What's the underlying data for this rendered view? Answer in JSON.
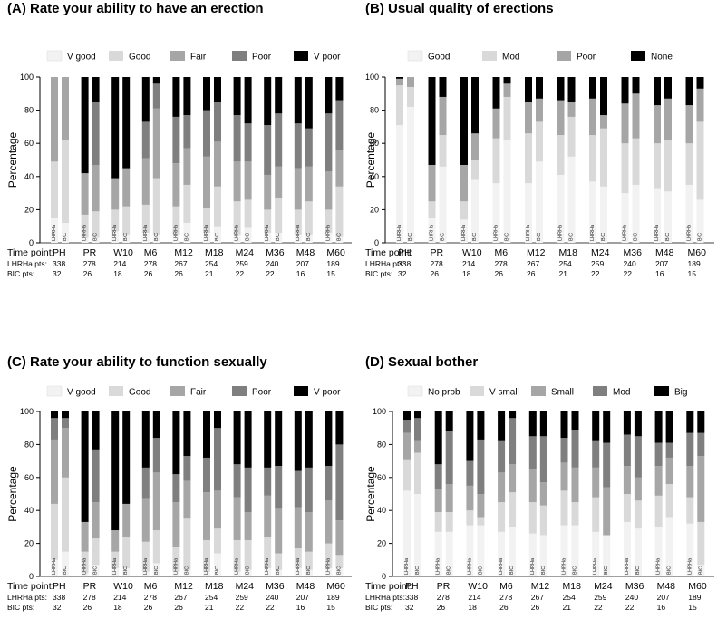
{
  "figure": {
    "time_point_label": "Time point:",
    "lhrha_label": "LHRHa pts:",
    "bic_label": "BIC pts:",
    "group_labels": [
      "LHRHa",
      "BIC"
    ],
    "time_points": [
      "PH",
      "PR",
      "W10",
      "M6",
      "M12",
      "M18",
      "M24",
      "M36",
      "M48",
      "M60"
    ],
    "lhrha_counts": [
      "338",
      "278",
      "214",
      "278",
      "267",
      "254",
      "259",
      "240",
      "207",
      "189"
    ],
    "bic_counts": [
      "32",
      "26",
      "18",
      "26",
      "26",
      "21",
      "22",
      "22",
      "16",
      "15"
    ]
  },
  "chart_data": [
    {
      "type": "bar",
      "stacked": true,
      "title": "(A) Rate your ability to have an erection",
      "ylabel": "Percentage",
      "ylim": [
        0,
        100
      ],
      "yticks": [
        "0",
        "20",
        "40",
        "60",
        "80",
        "100"
      ],
      "categories": [
        "PH-LHRHa",
        "PH-BIC",
        "PR-LHRHa",
        "PR-BIC",
        "W10-LHRHa",
        "W10-BIC",
        "M6-LHRHa",
        "M6-BIC",
        "M12-LHRHa",
        "M12-BIC",
        "M18-LHRHa",
        "M18-BIC",
        "M24-LHRHa",
        "M24-BIC",
        "M36-LHRHa",
        "M36-BIC",
        "M48-LHRHa",
        "M48-BIC",
        "M60-LHRHa",
        "M60-BIC"
      ],
      "series": [
        {
          "name": "V good",
          "color": "#f2f2f2",
          "values": [
            15,
            12,
            3,
            3,
            7,
            5,
            6,
            5,
            5,
            12,
            6,
            10,
            5,
            9,
            6,
            6,
            5,
            5,
            6,
            4
          ]
        },
        {
          "name": "Good",
          "color": "#d9d9d9",
          "values": [
            34,
            50,
            14,
            16,
            13,
            17,
            17,
            34,
            17,
            23,
            15,
            24,
            20,
            17,
            14,
            21,
            15,
            20,
            14,
            30
          ]
        },
        {
          "name": "Fair",
          "color": "#a6a6a6",
          "values": [
            51,
            38,
            25,
            28,
            19,
            23,
            28,
            42,
            26,
            22,
            31,
            27,
            24,
            23,
            21,
            19,
            25,
            21,
            23,
            22
          ]
        },
        {
          "name": "Poor",
          "color": "#7f7f7f",
          "values": [
            0,
            0,
            0,
            38,
            0,
            0,
            22,
            15,
            28,
            20,
            28,
            24,
            28,
            23,
            30,
            32,
            27,
            23,
            35,
            30
          ]
        },
        {
          "name": "V poor",
          "color": "#000000",
          "values": [
            0,
            0,
            58,
            15,
            61,
            55,
            27,
            4,
            24,
            23,
            20,
            15,
            23,
            28,
            29,
            22,
            28,
            31,
            22,
            14
          ]
        }
      ]
    },
    {
      "type": "bar",
      "stacked": true,
      "title": "(B) Usual quality of erections",
      "ylabel": "Percentage",
      "ylim": [
        0,
        100
      ],
      "yticks": [
        "0",
        "20",
        "40",
        "60",
        "80",
        "100"
      ],
      "categories": [
        "PH-LHRHa",
        "PH-BIC",
        "PR-LHRHa",
        "PR-BIC",
        "W10-LHRHa",
        "W10-BIC",
        "M6-LHRHa",
        "M6-BIC",
        "M12-LHRHa",
        "M12-BIC",
        "M18-LHRHa",
        "M18-BIC",
        "M24-LHRHa",
        "M24-BIC",
        "M36-LHRHa",
        "M36-BIC",
        "M48-LHRHa",
        "M48-BIC",
        "M60-LHRHa",
        "M60-BIC"
      ],
      "series": [
        {
          "name": "Good",
          "color": "#f2f2f2",
          "values": [
            71,
            82,
            15,
            46,
            14,
            38,
            36,
            62,
            36,
            49,
            41,
            52,
            37,
            34,
            30,
            35,
            33,
            31,
            35,
            26
          ]
        },
        {
          "name": "Mod",
          "color": "#d9d9d9",
          "values": [
            24,
            12,
            10,
            19,
            11,
            12,
            27,
            26,
            30,
            24,
            24,
            24,
            28,
            35,
            30,
            28,
            27,
            31,
            25,
            47
          ]
        },
        {
          "name": "Poor",
          "color": "#a6a6a6",
          "values": [
            4,
            6,
            22,
            23,
            22,
            16,
            18,
            8,
            19,
            14,
            21,
            9,
            22,
            8,
            24,
            27,
            23,
            25,
            23,
            20
          ]
        },
        {
          "name": "None",
          "color": "#000000",
          "values": [
            1,
            0,
            53,
            12,
            53,
            34,
            19,
            4,
            15,
            13,
            14,
            15,
            13,
            23,
            16,
            10,
            17,
            13,
            17,
            7
          ]
        }
      ]
    },
    {
      "type": "bar",
      "stacked": true,
      "title": "(C) Rate your ability to function sexually",
      "ylabel": "Percentage",
      "ylim": [
        0,
        100
      ],
      "yticks": [
        "0",
        "20",
        "40",
        "60",
        "80",
        "100"
      ],
      "categories": [
        "PH-LHRHa",
        "PH-BIC",
        "PR-LHRHa",
        "PR-BIC",
        "W10-LHRHa",
        "W10-BIC",
        "M6-LHRHa",
        "M6-BIC",
        "M12-LHRHa",
        "M12-BIC",
        "M18-LHRHa",
        "M18-BIC",
        "M24-LHRHa",
        "M24-BIC",
        "M36-LHRHa",
        "M36-BIC",
        "M48-LHRHa",
        "M48-BIC",
        "M60-LHRHa",
        "M60-BIC"
      ],
      "series": [
        {
          "name": "V good",
          "color": "#f2f2f2",
          "values": [
            10,
            15,
            2,
            7,
            5,
            5,
            3,
            8,
            3,
            4,
            3,
            14,
            3,
            4,
            5,
            4,
            5,
            4,
            5,
            5
          ]
        },
        {
          "name": "Good",
          "color": "#d9d9d9",
          "values": [
            34,
            45,
            13,
            16,
            10,
            19,
            18,
            20,
            15,
            31,
            19,
            15,
            19,
            18,
            19,
            10,
            12,
            11,
            15,
            8
          ]
        },
        {
          "name": "Fair",
          "color": "#a6a6a6",
          "values": [
            39,
            30,
            18,
            22,
            13,
            20,
            26,
            35,
            27,
            23,
            29,
            23,
            26,
            17,
            25,
            27,
            25,
            24,
            26,
            21
          ]
        },
        {
          "name": "Poor",
          "color": "#7f7f7f",
          "values": [
            13,
            6,
            0,
            32,
            0,
            0,
            19,
            21,
            17,
            15,
            21,
            38,
            20,
            27,
            17,
            26,
            22,
            27,
            21,
            46
          ]
        },
        {
          "name": "V poor",
          "color": "#000000",
          "values": [
            4,
            4,
            67,
            23,
            72,
            56,
            34,
            16,
            38,
            27,
            28,
            10,
            32,
            34,
            34,
            33,
            36,
            34,
            33,
            20
          ]
        }
      ]
    },
    {
      "type": "bar",
      "stacked": true,
      "title": "(D) Sexual bother",
      "ylabel": "Percentage",
      "ylim": [
        0,
        100
      ],
      "yticks": [
        "0",
        "20",
        "40",
        "60",
        "80",
        "100"
      ],
      "categories": [
        "PH-LHRHa",
        "PH-BIC",
        "PR-LHRHa",
        "PR-BIC",
        "W10-LHRHa",
        "W10-BIC",
        "M6-LHRHa",
        "M6-BIC",
        "M12-LHRHa",
        "M12-BIC",
        "M18-LHRHa",
        "M18-BIC",
        "M24-LHRHa",
        "M24-BIC",
        "M36-LHRHa",
        "M36-BIC",
        "M48-LHRHa",
        "M48-BIC",
        "M60-LHRHa",
        "M60-BIC"
      ],
      "series": [
        {
          "name": "No prob",
          "color": "#f2f2f2",
          "values": [
            52,
            50,
            27,
            27,
            31,
            31,
            27,
            30,
            26,
            25,
            31,
            31,
            27,
            25,
            33,
            29,
            30,
            36,
            32,
            7
          ]
        },
        {
          "name": "V small",
          "color": "#d9d9d9",
          "values": [
            19,
            25,
            12,
            12,
            9,
            5,
            18,
            21,
            19,
            18,
            21,
            14,
            21,
            0,
            17,
            17,
            19,
            20,
            16,
            26
          ]
        },
        {
          "name": "Small",
          "color": "#a6a6a6",
          "values": [
            16,
            7,
            14,
            17,
            15,
            14,
            18,
            17,
            20,
            14,
            17,
            21,
            18,
            29,
            17,
            14,
            18,
            16,
            19,
            40
          ]
        },
        {
          "name": "Mod",
          "color": "#7f7f7f",
          "values": [
            8,
            14,
            15,
            32,
            15,
            33,
            19,
            28,
            20,
            28,
            15,
            23,
            16,
            27,
            19,
            25,
            14,
            9,
            20,
            14
          ]
        },
        {
          "name": "Big",
          "color": "#000000",
          "values": [
            5,
            4,
            32,
            12,
            30,
            17,
            18,
            4,
            15,
            15,
            16,
            11,
            18,
            19,
            14,
            15,
            19,
            19,
            13,
            13
          ]
        }
      ]
    }
  ]
}
